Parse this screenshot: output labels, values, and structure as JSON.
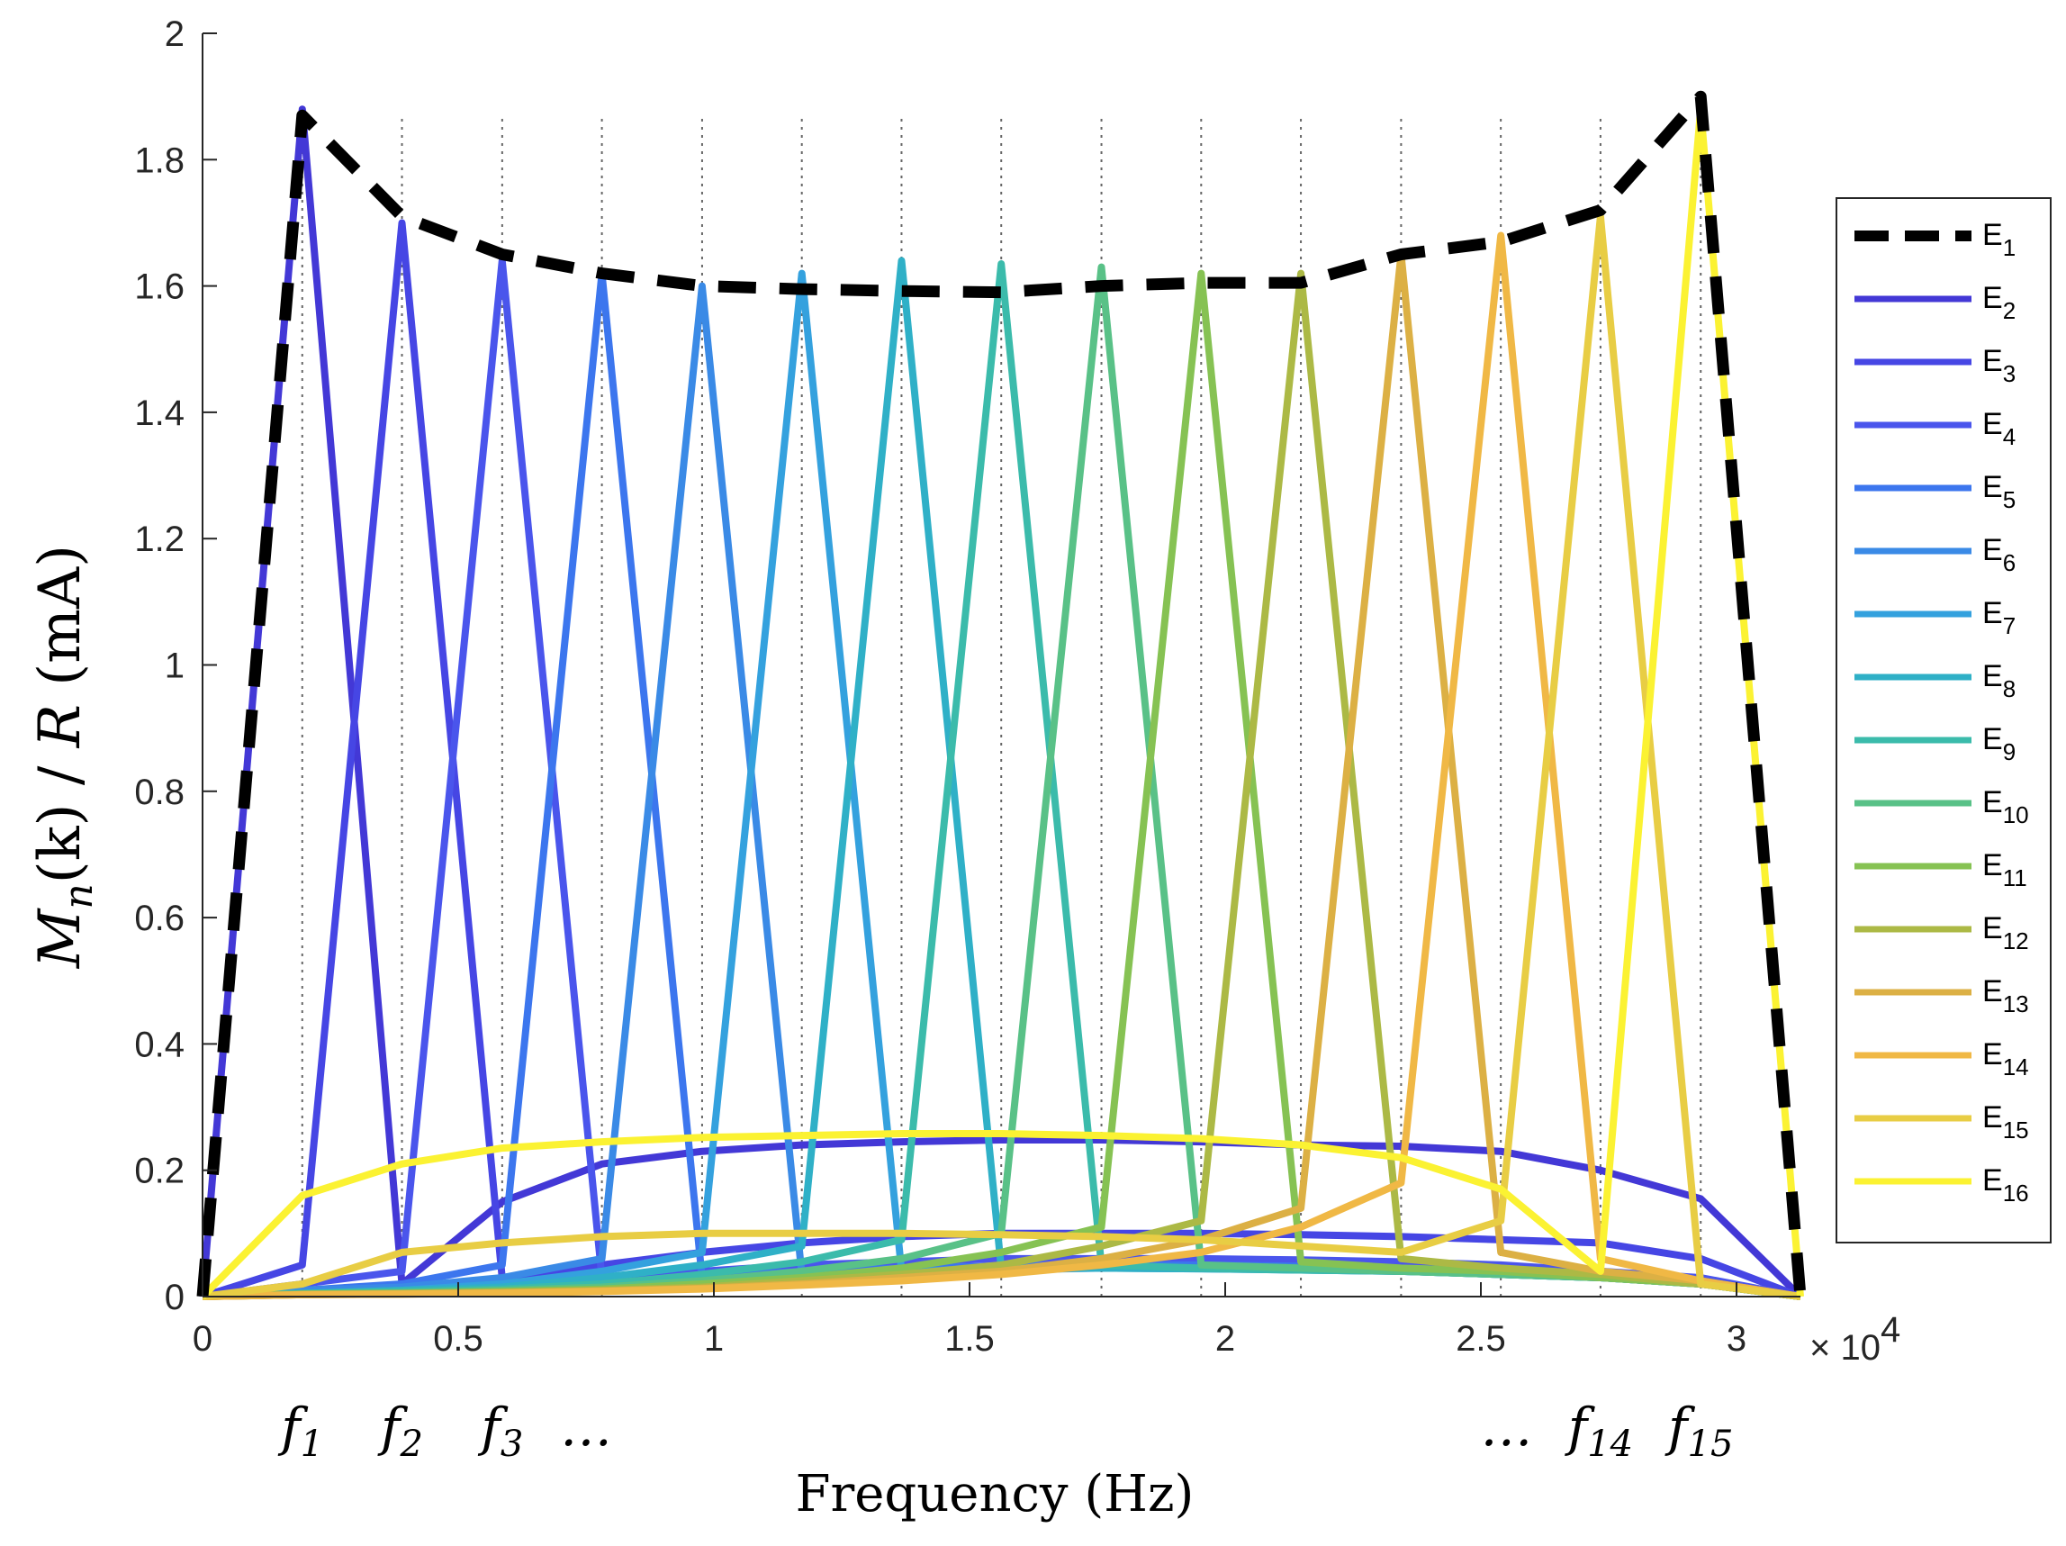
{
  "chart_data": {
    "type": "line",
    "ylabel": "M_n(k) / R (mA)",
    "ylabel_parts": [
      "M",
      "n",
      "(k)",
      " / ",
      "R",
      " (mA)"
    ],
    "xlabel": "Frequency (Hz)",
    "x_multiplier_label": "× 10",
    "x_multiplier_exp": "4",
    "xlim": [
      0,
      31250
    ],
    "ylim": [
      0,
      2
    ],
    "xticks": [
      0,
      5000,
      10000,
      15000,
      20000,
      25000,
      30000
    ],
    "xtick_labels": [
      "0",
      "0.5",
      "1",
      "1.5",
      "2",
      "2.5",
      "3"
    ],
    "yticks": [
      0,
      0.2,
      0.4,
      0.6,
      0.8,
      1,
      1.2,
      1.4,
      1.6,
      1.8,
      2
    ],
    "ytick_labels": [
      "0",
      "0.2",
      "0.4",
      "0.6",
      "0.8",
      "1",
      "1.2",
      "1.4",
      "1.6",
      "1.8",
      "2"
    ],
    "x": [
      0,
      1950,
      3900,
      5860,
      7810,
      9770,
      11720,
      13670,
      15620,
      17580,
      19530,
      21480,
      23440,
      25390,
      27340,
      29300,
      31250
    ],
    "peak_values": [
      1.88,
      1.7,
      1.64,
      1.62,
      1.6,
      1.62,
      1.64,
      1.635,
      1.63,
      1.62,
      1.62,
      1.65,
      1.68,
      1.71,
      1.88
    ],
    "peak_freq_labels": [
      {
        "main": "f",
        "sub": "1",
        "x": 1950
      },
      {
        "main": "f",
        "sub": "2",
        "x": 3900
      },
      {
        "main": "f",
        "sub": "3",
        "x": 5860
      },
      {
        "main": "…",
        "sub": "",
        "x": 7500
      },
      {
        "main": "…",
        "sub": "",
        "x": 25500
      },
      {
        "main": "f",
        "sub": "14",
        "x": 27340
      },
      {
        "main": "f",
        "sub": "15",
        "x": 29300
      }
    ],
    "grid": "vertical dotted lines at f1…f15",
    "legend_position": "right",
    "series": [
      {
        "name": "E",
        "sub": "1",
        "color": "#000000",
        "style": "dashed",
        "values": [
          0,
          1.87,
          1.71,
          1.65,
          1.62,
          1.6,
          1.595,
          1.592,
          1.59,
          1.6,
          1.605,
          1.605,
          1.65,
          1.67,
          1.72,
          1.9,
          0
        ]
      },
      {
        "name": "E",
        "sub": "2",
        "color": "#4338d6",
        "values": [
          0,
          1.88,
          0.02,
          0.15,
          0.21,
          0.23,
          0.24,
          0.245,
          0.248,
          0.248,
          0.245,
          0.24,
          0.238,
          0.23,
          0.2,
          0.155,
          0
        ]
      },
      {
        "name": "E",
        "sub": "3",
        "color": "#4646e4",
        "values": [
          0,
          0.05,
          1.7,
          0.03,
          0.05,
          0.07,
          0.085,
          0.095,
          0.1,
          0.1,
          0.1,
          0.098,
          0.095,
          0.09,
          0.085,
          0.06,
          0
        ]
      },
      {
        "name": "E",
        "sub": "4",
        "color": "#4a55ec",
        "values": [
          0,
          0.02,
          0.04,
          1.64,
          0.03,
          0.04,
          0.05,
          0.055,
          0.06,
          0.06,
          0.06,
          0.058,
          0.055,
          0.05,
          0.04,
          0.03,
          0
        ]
      },
      {
        "name": "E",
        "sub": "5",
        "color": "#3c76ee",
        "values": [
          0,
          0.01,
          0.02,
          0.05,
          1.62,
          0.03,
          0.04,
          0.045,
          0.048,
          0.05,
          0.05,
          0.048,
          0.045,
          0.04,
          0.035,
          0.02,
          0
        ]
      },
      {
        "name": "E",
        "sub": "6",
        "color": "#3a8ae6",
        "values": [
          0,
          0.01,
          0.015,
          0.03,
          0.06,
          1.6,
          0.035,
          0.04,
          0.045,
          0.045,
          0.045,
          0.043,
          0.04,
          0.035,
          0.03,
          0.02,
          0
        ]
      },
      {
        "name": "E",
        "sub": "7",
        "color": "#34a1de",
        "values": [
          0,
          0.005,
          0.01,
          0.02,
          0.04,
          0.07,
          1.62,
          0.04,
          0.042,
          0.045,
          0.044,
          0.042,
          0.04,
          0.035,
          0.03,
          0.02,
          0
        ]
      },
      {
        "name": "E",
        "sub": "8",
        "color": "#2fb0c7",
        "values": [
          0,
          0.005,
          0.01,
          0.015,
          0.03,
          0.05,
          0.08,
          1.64,
          0.045,
          0.045,
          0.044,
          0.042,
          0.04,
          0.035,
          0.03,
          0.02,
          0
        ]
      },
      {
        "name": "E",
        "sub": "9",
        "color": "#3bbbab",
        "values": [
          0,
          0.005,
          0.008,
          0.012,
          0.02,
          0.035,
          0.055,
          0.09,
          1.635,
          0.05,
          0.045,
          0.042,
          0.04,
          0.035,
          0.03,
          0.02,
          0
        ]
      },
      {
        "name": "E",
        "sub": "10",
        "color": "#59c187",
        "values": [
          0,
          0.004,
          0.006,
          0.01,
          0.015,
          0.025,
          0.04,
          0.06,
          0.1,
          1.63,
          0.05,
          0.045,
          0.04,
          0.035,
          0.03,
          0.02,
          0
        ]
      },
      {
        "name": "E",
        "sub": "11",
        "color": "#86c253",
        "values": [
          0,
          0.004,
          0.005,
          0.008,
          0.012,
          0.02,
          0.03,
          0.045,
          0.07,
          0.11,
          1.62,
          0.055,
          0.045,
          0.04,
          0.03,
          0.02,
          0
        ]
      },
      {
        "name": "E",
        "sub": "12",
        "color": "#acb945",
        "values": [
          0,
          0.003,
          0.005,
          0.007,
          0.01,
          0.015,
          0.025,
          0.035,
          0.05,
          0.08,
          0.12,
          1.62,
          0.06,
          0.045,
          0.035,
          0.02,
          0
        ]
      },
      {
        "name": "E",
        "sub": "13",
        "color": "#dcb044",
        "values": [
          0,
          0.003,
          0.004,
          0.006,
          0.009,
          0.013,
          0.02,
          0.03,
          0.04,
          0.06,
          0.09,
          0.14,
          1.65,
          0.07,
          0.04,
          0.025,
          0
        ]
      },
      {
        "name": "E",
        "sub": "14",
        "color": "#f0b845",
        "values": [
          0,
          0.003,
          0.004,
          0.005,
          0.008,
          0.012,
          0.018,
          0.025,
          0.035,
          0.05,
          0.07,
          0.11,
          0.18,
          1.68,
          0.06,
          0.025,
          0
        ]
      },
      {
        "name": "E",
        "sub": "15",
        "color": "#e8cd44",
        "values": [
          0,
          0.02,
          0.07,
          0.085,
          0.095,
          0.1,
          0.1,
          0.1,
          0.098,
          0.095,
          0.09,
          0.08,
          0.07,
          0.12,
          1.71,
          0.02,
          0
        ]
      },
      {
        "name": "E",
        "sub": "16",
        "color": "#fbf232",
        "values": [
          0,
          0.16,
          0.21,
          0.235,
          0.245,
          0.252,
          0.255,
          0.258,
          0.258,
          0.255,
          0.25,
          0.24,
          0.22,
          0.17,
          0.04,
          1.88,
          0
        ]
      }
    ]
  }
}
